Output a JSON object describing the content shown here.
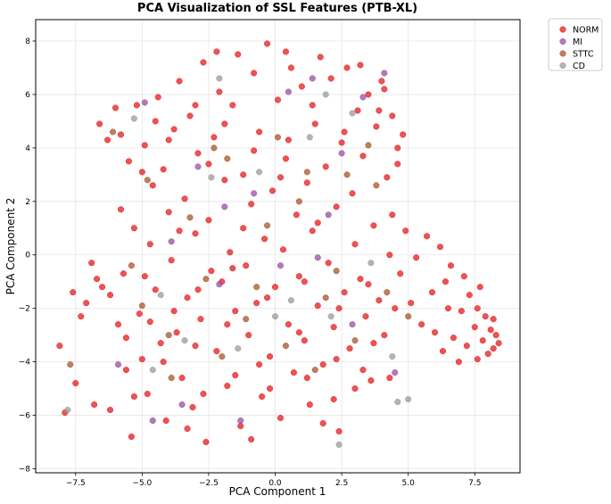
{
  "chart_data": {
    "type": "scatter",
    "title": "PCA Visualization of SSL Features (PTB-XL)",
    "xlabel": "PCA Component 1",
    "ylabel": "PCA Component 2",
    "xlim": [
      -9.0,
      9.2
    ],
    "ylim": [
      -8.15,
      8.8
    ],
    "xticks": [
      -7.5,
      -5.0,
      -2.5,
      0.0,
      2.5,
      5.0,
      7.5
    ],
    "xtick_labels": [
      "−7.5",
      "−5.0",
      "−2.5",
      "0.0",
      "2.5",
      "5.0",
      "7.5"
    ],
    "yticks": [
      -8,
      -6,
      -4,
      -2,
      0,
      2,
      4,
      6,
      8
    ],
    "ytick_labels": [
      "−8",
      "−6",
      "−4",
      "−2",
      "0",
      "2",
      "4",
      "6",
      "8"
    ],
    "grid": true,
    "legend_position": "outside-top-right",
    "marker_alpha": 0.75,
    "series": [
      {
        "name": "NORM",
        "color": "#e41a1c",
        "points": [
          [
            -8.1,
            -3.4
          ],
          [
            -7.9,
            -5.9
          ],
          [
            -7.6,
            -1.4
          ],
          [
            -7.5,
            -4.8
          ],
          [
            -7.1,
            -1.8
          ],
          [
            -6.9,
            -0.3
          ],
          [
            -6.8,
            -5.6
          ],
          [
            -6.6,
            4.9
          ],
          [
            -6.5,
            -1.2
          ],
          [
            -6.3,
            4.3
          ],
          [
            -6.2,
            -5.8
          ],
          [
            -6.0,
            5.5
          ],
          [
            -5.9,
            -2.6
          ],
          [
            -5.8,
            4.5
          ],
          [
            -5.7,
            -0.7
          ],
          [
            -5.6,
            -4.3
          ],
          [
            -5.5,
            3.5
          ],
          [
            -5.4,
            -6.8
          ],
          [
            -5.3,
            1.0
          ],
          [
            -5.2,
            5.6
          ],
          [
            -5.1,
            -2.2
          ],
          [
            -5.0,
            -3.9
          ],
          [
            -4.9,
            4.1
          ],
          [
            -4.8,
            -5.2
          ],
          [
            -4.7,
            0.4
          ],
          [
            -4.6,
            2.6
          ],
          [
            -4.5,
            -1.3
          ],
          [
            -4.4,
            5.9
          ],
          [
            -4.3,
            -3.3
          ],
          [
            -4.2,
            3.2
          ],
          [
            -4.1,
            -6.2
          ],
          [
            -4.0,
            1.6
          ],
          [
            -3.9,
            -0.2
          ],
          [
            -3.8,
            4.7
          ],
          [
            -3.7,
            -2.9
          ],
          [
            -3.6,
            6.5
          ],
          [
            -3.5,
            -4.6
          ],
          [
            -3.4,
            2.1
          ],
          [
            -3.3,
            -1.6
          ],
          [
            -3.2,
            5.2
          ],
          [
            -3.1,
            -5.7
          ],
          [
            -3.0,
            0.8
          ],
          [
            -2.9,
            3.8
          ],
          [
            -2.8,
            -2.4
          ],
          [
            -2.7,
            7.2
          ],
          [
            -2.6,
            -7.0
          ],
          [
            -2.5,
            1.3
          ],
          [
            -2.4,
            -0.6
          ],
          [
            -2.3,
            4.4
          ],
          [
            -2.2,
            -3.6
          ],
          [
            -2.1,
            6.1
          ],
          [
            -2.0,
            -1.0
          ],
          [
            -1.9,
            2.8
          ],
          [
            -1.8,
            -4.9
          ],
          [
            -1.7,
            0.1
          ],
          [
            -1.6,
            5.6
          ],
          [
            -1.5,
            -2.1
          ],
          [
            -1.4,
            7.5
          ],
          [
            -1.3,
            -6.4
          ],
          [
            -1.2,
            3.0
          ],
          [
            -1.1,
            -0.4
          ],
          [
            -1.0,
            -3.0
          ],
          [
            -0.9,
            1.9
          ],
          [
            -0.8,
            6.8
          ],
          [
            -0.7,
            -1.8
          ],
          [
            -0.6,
            4.6
          ],
          [
            -0.5,
            -5.3
          ],
          [
            -0.4,
            0.6
          ],
          [
            -0.3,
            7.9
          ],
          [
            -0.2,
            -3.8
          ],
          [
            -0.1,
            2.4
          ],
          [
            0.0,
            -1.2
          ],
          [
            0.1,
            5.8
          ],
          [
            0.2,
            -6.1
          ],
          [
            0.3,
            0.2
          ],
          [
            0.4,
            3.6
          ],
          [
            0.5,
            -2.6
          ],
          [
            0.6,
            7.0
          ],
          [
            0.7,
            -4.4
          ],
          [
            0.8,
            1.5
          ],
          [
            0.9,
            -0.8
          ],
          [
            1.0,
            6.3
          ],
          [
            1.1,
            -3.2
          ],
          [
            1.2,
            2.7
          ],
          [
            1.3,
            -5.6
          ],
          [
            1.4,
            0.9
          ],
          [
            1.5,
            4.9
          ],
          [
            1.6,
            -1.9
          ],
          [
            1.7,
            7.4
          ],
          [
            1.8,
            -4.1
          ],
          [
            1.9,
            3.3
          ],
          [
            2.0,
            -0.3
          ],
          [
            2.1,
            6.6
          ],
          [
            2.2,
            -2.7
          ],
          [
            2.3,
            1.8
          ],
          [
            2.4,
            -6.6
          ],
          [
            2.5,
            4.2
          ],
          [
            2.6,
            -1.4
          ],
          [
            2.7,
            7.0
          ],
          [
            2.8,
            -3.5
          ],
          [
            2.9,
            2.3
          ],
          [
            3.0,
            -5.0
          ],
          [
            3.1,
            5.4
          ],
          [
            3.2,
            -0.9
          ],
          [
            3.3,
            3.7
          ],
          [
            3.4,
            -2.3
          ],
          [
            3.5,
            6.0
          ],
          [
            3.6,
            -4.7
          ],
          [
            3.7,
            1.1
          ],
          [
            3.8,
            4.8
          ],
          [
            3.9,
            -1.7
          ],
          [
            4.0,
            6.5
          ],
          [
            4.1,
            -3.0
          ],
          [
            4.2,
            2.9
          ],
          [
            4.3,
            0.0
          ],
          [
            4.4,
            5.2
          ],
          [
            4.5,
            -2.0
          ],
          [
            4.6,
            3.4
          ],
          [
            4.8,
            4.5
          ],
          [
            4.9,
            0.9
          ],
          [
            5.1,
            -1.8
          ],
          [
            5.3,
            -0.1
          ],
          [
            5.5,
            -2.6
          ],
          [
            5.7,
            0.7
          ],
          [
            5.9,
            -1.4
          ],
          [
            6.0,
            -2.9
          ],
          [
            6.2,
            0.3
          ],
          [
            6.3,
            -3.6
          ],
          [
            6.4,
            -1.0
          ],
          [
            6.6,
            -0.4
          ],
          [
            6.7,
            -3.1
          ],
          [
            6.9,
            -4.0
          ],
          [
            7.0,
            -2.1
          ],
          [
            7.2,
            -3.4
          ],
          [
            7.3,
            -1.5
          ],
          [
            7.5,
            -2.7
          ],
          [
            7.6,
            -3.9
          ],
          [
            7.7,
            -1.2
          ],
          [
            7.8,
            -3.2
          ],
          [
            7.9,
            -2.3
          ],
          [
            8.0,
            -3.7
          ],
          [
            8.1,
            -2.8
          ],
          [
            8.2,
            -3.5
          ],
          [
            8.3,
            -3.0
          ],
          [
            8.4,
            -3.3
          ],
          [
            -6.2,
            -1.5
          ],
          [
            -5.6,
            -3.1
          ],
          [
            -4.9,
            -0.8
          ],
          [
            -4.2,
            -4.0
          ],
          [
            -3.6,
            0.9
          ],
          [
            -3.0,
            -3.4
          ],
          [
            -2.5,
            3.4
          ],
          [
            -1.8,
            -2.6
          ],
          [
            -1.2,
            1.0
          ],
          [
            -0.6,
            -4.1
          ],
          [
            0.2,
            2.9
          ],
          [
            0.9,
            -2.9
          ],
          [
            1.6,
            1.2
          ],
          [
            2.3,
            -3.9
          ],
          [
            3.0,
            0.4
          ],
          [
            3.7,
            -3.3
          ],
          [
            4.4,
            1.5
          ],
          [
            -5.3,
            -5.3
          ],
          [
            -4.5,
            5.0
          ],
          [
            -3.3,
            -6.5
          ],
          [
            -2.2,
            7.6
          ],
          [
            -0.9,
            -6.9
          ],
          [
            0.4,
            7.6
          ],
          [
            1.8,
            -6.3
          ],
          [
            3.2,
            7.1
          ],
          [
            4.1,
            6.2
          ],
          [
            -7.3,
            -2.3
          ],
          [
            -6.7,
            -0.9
          ],
          [
            -5.8,
            1.7
          ],
          [
            -5.0,
            3.1
          ],
          [
            -4.0,
            4.3
          ],
          [
            -3.0,
            5.6
          ],
          [
            -1.9,
            4.9
          ],
          [
            -0.8,
            3.9
          ],
          [
            0.5,
            4.3
          ],
          [
            1.4,
            5.6
          ],
          [
            2.6,
            4.6
          ],
          [
            3.9,
            5.4
          ],
          [
            4.6,
            4.0
          ],
          [
            -4.7,
            -2.5
          ],
          [
            -3.8,
            -2.1
          ],
          [
            -2.9,
            -1.3
          ],
          [
            -1.6,
            -0.5
          ],
          [
            -0.3,
            -1.6
          ],
          [
            1.1,
            -1.0
          ],
          [
            2.4,
            -2.0
          ],
          [
            3.5,
            -1.1
          ],
          [
            4.7,
            -0.7
          ],
          [
            6.5,
            -2.0
          ],
          [
            7.1,
            -0.8
          ],
          [
            7.6,
            -2.0
          ],
          [
            8.2,
            -2.4
          ],
          [
            -2.7,
            -5.2
          ],
          [
            -1.5,
            -4.5
          ],
          [
            -0.2,
            -5.0
          ],
          [
            1.2,
            -4.6
          ],
          [
            2.2,
            -5.4
          ],
          [
            3.3,
            -4.3
          ],
          [
            4.3,
            -4.6
          ]
        ]
      },
      {
        "name": "MI",
        "color": "#984ea3",
        "points": [
          [
            -4.9,
            5.7
          ],
          [
            -4.6,
            -6.2
          ],
          [
            -3.5,
            -5.6
          ],
          [
            -2.9,
            3.3
          ],
          [
            -2.1,
            -1.1
          ],
          [
            -1.3,
            -6.2
          ],
          [
            -0.8,
            2.3
          ],
          [
            0.2,
            -0.4
          ],
          [
            1.4,
            6.6
          ],
          [
            2.0,
            1.5
          ],
          [
            2.5,
            3.8
          ],
          [
            3.3,
            5.9
          ],
          [
            4.1,
            6.8
          ],
          [
            4.5,
            -4.4
          ],
          [
            -3.9,
            0.5
          ],
          [
            -5.9,
            -4.1
          ],
          [
            1.6,
            -0.1
          ],
          [
            2.9,
            -2.6
          ],
          [
            0.5,
            6.1
          ],
          [
            -1.9,
            1.8
          ]
        ]
      },
      {
        "name": "STTC",
        "color": "#a65628",
        "points": [
          [
            -7.7,
            -4.1
          ],
          [
            -6.1,
            4.6
          ],
          [
            -5.4,
            -0.4
          ],
          [
            -4.8,
            2.8
          ],
          [
            -4.0,
            -3.0
          ],
          [
            -3.2,
            1.4
          ],
          [
            -2.6,
            -0.9
          ],
          [
            -1.8,
            3.6
          ],
          [
            -1.1,
            -2.4
          ],
          [
            -0.3,
            1.1
          ],
          [
            0.4,
            -3.4
          ],
          [
            1.2,
            3.1
          ],
          [
            1.9,
            -1.6
          ],
          [
            2.7,
            3.0
          ],
          [
            3.5,
            4.1
          ],
          [
            4.2,
            -1.4
          ],
          [
            5.0,
            -2.3
          ],
          [
            -3.9,
            -4.6
          ],
          [
            -2.3,
            4.0
          ],
          [
            -0.7,
            -1.2
          ],
          [
            0.9,
            2.0
          ],
          [
            2.3,
            -0.6
          ],
          [
            3.8,
            2.6
          ],
          [
            -5.0,
            -1.9
          ],
          [
            1.5,
            -4.3
          ],
          [
            3.0,
            -3.2
          ],
          [
            -2.0,
            -3.8
          ],
          [
            0.1,
            4.4
          ]
        ]
      },
      {
        "name": "CD",
        "color": "#999999",
        "points": [
          [
            -7.8,
            -5.8
          ],
          [
            -5.3,
            5.1
          ],
          [
            -4.3,
            -1.5
          ],
          [
            -3.4,
            -3.2
          ],
          [
            -2.4,
            2.9
          ],
          [
            -1.4,
            -3.5
          ],
          [
            -0.6,
            3.1
          ],
          [
            0.6,
            -1.7
          ],
          [
            1.3,
            4.4
          ],
          [
            2.1,
            -2.3
          ],
          [
            2.9,
            5.3
          ],
          [
            3.6,
            -0.3
          ],
          [
            4.4,
            -3.8
          ],
          [
            4.6,
            -5.5
          ],
          [
            5.0,
            -5.4
          ],
          [
            2.4,
            -7.1
          ],
          [
            -2.1,
            6.6
          ],
          [
            1.9,
            6.0
          ],
          [
            -4.6,
            -4.3
          ],
          [
            0.0,
            -2.3
          ]
        ]
      }
    ]
  }
}
